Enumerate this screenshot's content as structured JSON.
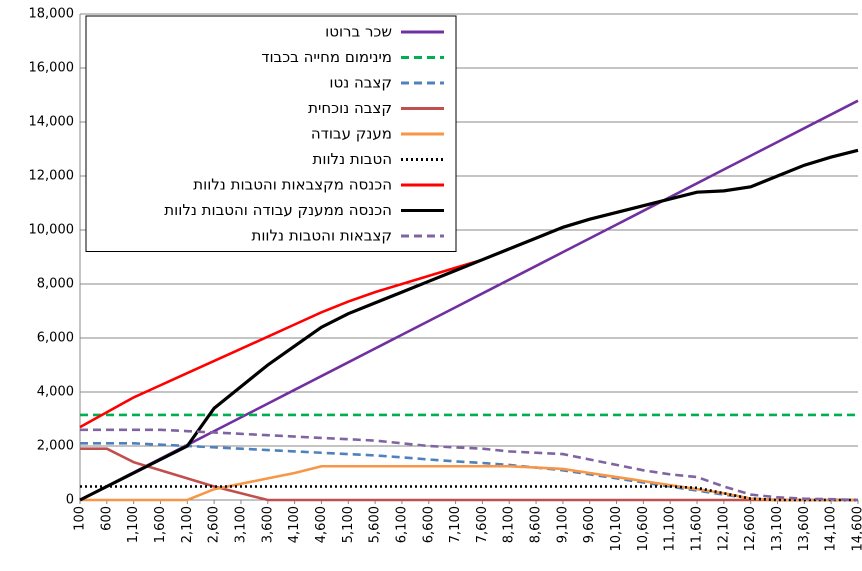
{
  "chart_data": {
    "type": "line",
    "categories": [
      "100",
      "600",
      "1,100",
      "1,600",
      "2,100",
      "2,600",
      "3,100",
      "3,600",
      "4,100",
      "4,600",
      "5,100",
      "5,600",
      "6,100",
      "6,600",
      "7,100",
      "7,600",
      "8,100",
      "8,600",
      "9,100",
      "9,600",
      "10,100",
      "10,600",
      "11,100",
      "11,600",
      "12,100",
      "12,600",
      "13,100",
      "13,600",
      "14,100",
      "14,600"
    ],
    "ylim": [
      0,
      18000
    ],
    "yticks": [
      0,
      {
        "value": 2000,
        "label": "2,000"
      },
      {
        "value": 4000,
        "label": "4,000"
      },
      {
        "value": 6000,
        "label": "6,000"
      },
      {
        "value": 8000,
        "label": "8,000"
      },
      {
        "value": 10000,
        "label": "10,000"
      },
      {
        "value": 12000,
        "label": "12,000"
      },
      {
        "value": 14000,
        "label": "14,000"
      },
      {
        "value": 16000,
        "label": "16,000"
      },
      {
        "value": 18000,
        "label": "18,000"
      }
    ],
    "grid": true,
    "legend": "upper left",
    "series": [
      {
        "name": "שכר ברוטו",
        "color": "#7030a0",
        "dash": "solid",
        "values": [
          0,
          510,
          1020,
          1530,
          2040,
          2550,
          3060,
          3570,
          4080,
          4590,
          5100,
          5610,
          6120,
          6630,
          7140,
          7650,
          8160,
          8670,
          9180,
          9690,
          10200,
          10710,
          11220,
          11730,
          12240,
          12750,
          13260,
          13770,
          14280,
          14790
        ]
      },
      {
        "name": "מינימום מחייה בכבוד",
        "color": "#00b050",
        "dash": "dashed",
        "values": [
          3150,
          3150,
          3150,
          3150,
          3150,
          3150,
          3150,
          3150,
          3150,
          3150,
          3150,
          3150,
          3150,
          3150,
          3150,
          3150,
          3150,
          3150,
          3150,
          3150,
          3150,
          3150,
          3150,
          3150,
          3150,
          3150,
          3150,
          3150,
          3150,
          3150
        ]
      },
      {
        "name": "קצבה נטו",
        "color": "#4f81bd",
        "dash": "dashed",
        "values": [
          2100,
          2100,
          2100,
          2050,
          2000,
          1950,
          1900,
          1850,
          1800,
          1750,
          1700,
          1650,
          1580,
          1500,
          1430,
          1370,
          1300,
          1200,
          1100,
          950,
          800,
          650,
          500,
          350,
          200,
          60,
          0,
          0,
          0,
          0
        ]
      },
      {
        "name": "קצבה נוכחית",
        "color": "#c0504d",
        "dash": "solid",
        "values": [
          1900,
          1900,
          1400,
          1100,
          800,
          500,
          250,
          0,
          0,
          0,
          0,
          0,
          0,
          0,
          0,
          0,
          0,
          0,
          0,
          0,
          0,
          0,
          0,
          0,
          0,
          0,
          0,
          0,
          0,
          0
        ]
      },
      {
        "name": "מענק עבודה",
        "color": "#f79646",
        "dash": "solid",
        "values": [
          0,
          0,
          0,
          0,
          0,
          400,
          600,
          800,
          1000,
          1250,
          1250,
          1250,
          1250,
          1250,
          1250,
          1250,
          1250,
          1200,
          1150,
          1000,
          850,
          700,
          550,
          400,
          250,
          50,
          0,
          0,
          0,
          0
        ]
      },
      {
        "name": "הטבות נלוות",
        "color": "#000000",
        "dash": "dotted",
        "values": [
          500,
          500,
          500,
          500,
          500,
          500,
          500,
          500,
          500,
          500,
          500,
          500,
          500,
          500,
          500,
          500,
          500,
          500,
          500,
          500,
          500,
          500,
          500,
          450,
          250,
          50,
          0,
          0,
          0,
          0
        ]
      },
      {
        "name": "הכנסה מקצבאות  והטבות נלוות",
        "color": "#ff0000",
        "dash": "solid",
        "values": [
          2700,
          3250,
          3800,
          4250,
          4700,
          5150,
          5600,
          6050,
          6500,
          6950,
          7350,
          7700,
          8000,
          8300,
          8600,
          8900,
          9300,
          9700,
          null,
          null,
          null,
          null,
          null,
          null,
          null,
          null,
          null,
          null,
          null,
          null
        ]
      },
      {
        "name": "הכנסה ממענק עבודה והטבות נלוות",
        "color": "#000000",
        "dash": "solid",
        "values": [
          0,
          500,
          1000,
          1500,
          2000,
          3400,
          4200,
          5000,
          5700,
          6400,
          6900,
          7300,
          7700,
          8100,
          8500,
          8900,
          9300,
          9700,
          10100,
          10400,
          10650,
          10900,
          11150,
          11400,
          11450,
          11600,
          12000,
          12400,
          12700,
          12950
        ]
      },
      {
        "name": "קצבאות והטבות נלוות",
        "color": "#8064a2",
        "dash": "dashed",
        "values": [
          2600,
          2600,
          2600,
          2600,
          2550,
          2500,
          2450,
          2400,
          2350,
          2300,
          2250,
          2200,
          2100,
          2000,
          1950,
          1900,
          1800,
          1750,
          1700,
          1500,
          1300,
          1100,
          950,
          850,
          500,
          200,
          100,
          50,
          30,
          0
        ]
      }
    ]
  }
}
